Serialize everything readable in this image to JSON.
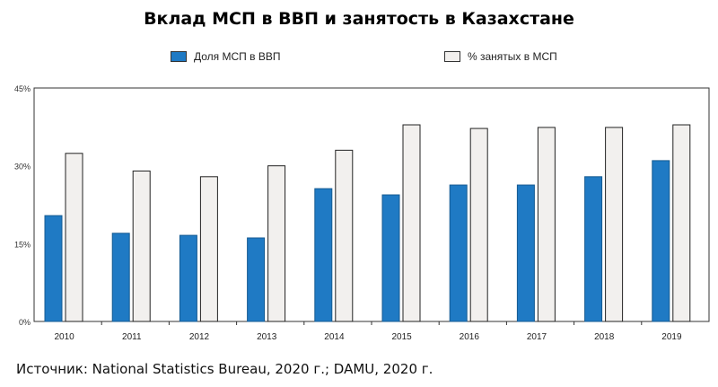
{
  "chart_data": {
    "type": "bar",
    "title": "Вклад МСП в ВВП и занятость в Казахстане",
    "categories": [
      "2010",
      "2011",
      "2012",
      "2013",
      "2014",
      "2015",
      "2016",
      "2017",
      "2018",
      "2019"
    ],
    "series": [
      {
        "name": "Доля МСП в ВВП",
        "color": "#1f7ac4",
        "values": [
          20.4,
          17.0,
          16.6,
          16.1,
          25.6,
          24.4,
          26.3,
          26.3,
          27.9,
          31.0
        ]
      },
      {
        "name": "% занятых в МСП",
        "color": "#f2f0ee",
        "values": [
          32.4,
          29.0,
          27.9,
          30.0,
          33.0,
          37.9,
          37.2,
          37.4,
          37.4,
          37.9
        ]
      }
    ],
    "yticks": [
      "0%",
      "15%",
      "30%",
      "45%"
    ],
    "ylim": [
      0,
      45
    ],
    "grid": false,
    "legend_position": "top",
    "source": "Источник: National Statistics Bureau, 2020 г.; DAMU, 2020 г."
  }
}
